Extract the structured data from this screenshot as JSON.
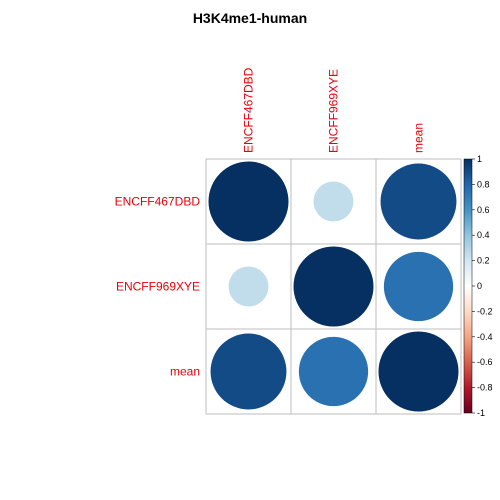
{
  "chart_data": {
    "type": "heatmap",
    "title": "H3K4me1-human",
    "rows": [
      "ENCFF467DBD",
      "ENCFF969XYE",
      "mean"
    ],
    "columns": [
      "ENCFF467DBD",
      "ENCFF969XYE",
      "mean"
    ],
    "values": [
      [
        1.0,
        0.25,
        0.9
      ],
      [
        0.25,
        1.0,
        0.75
      ],
      [
        0.9,
        0.75,
        1.0
      ]
    ],
    "colorbar": {
      "range": [
        -1,
        1
      ],
      "ticks": [
        "1",
        "0.8",
        "0.6",
        "0.4",
        "0.2",
        "0",
        "-0.2",
        "-0.4",
        "-0.6",
        "-0.8",
        "-1"
      ]
    },
    "label_color": "#e8000b",
    "palette": [
      "#67001f",
      "#b2182b",
      "#d6604d",
      "#f4a582",
      "#fddbc7",
      "#ffffff",
      "#d1e5f0",
      "#92c5de",
      "#4393c3",
      "#2166ac",
      "#053061"
    ]
  }
}
